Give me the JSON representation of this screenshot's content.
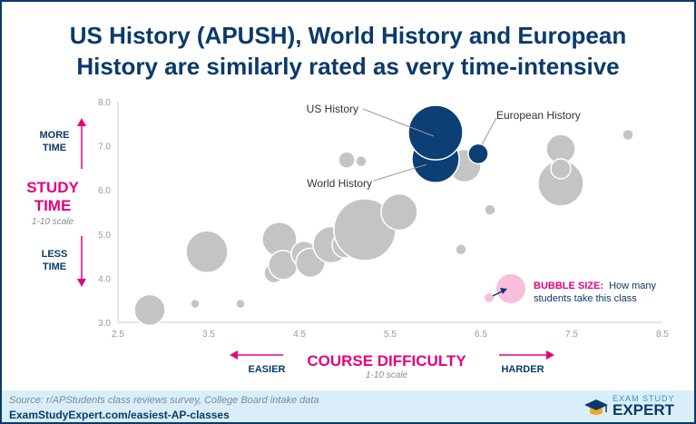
{
  "title_lines": [
    "US History (APUSH), World History and European",
    "History are similarly rated as very time-intensive"
  ],
  "colors": {
    "frame": "#0a3a6b",
    "highlight": "#0b3f75",
    "bubble": "#c4c4c4",
    "accent": "#e6007e",
    "legend_bubble": "#f7bfdc",
    "footer": "#d9eef8"
  },
  "annotations": {
    "more_time": [
      "MORE",
      "TIME"
    ],
    "less_time": [
      "LESS",
      "TIME"
    ],
    "study_time": [
      "STUDY",
      "TIME"
    ],
    "y_scale": "1-10 scale",
    "easier": "EASIER",
    "harder": "HARDER",
    "course_difficulty": "COURSE DIFFICULTY",
    "x_scale": "1-10 scale",
    "bubble_size_label": "BUBBLE SIZE:",
    "bubble_size_text_1": "How many",
    "bubble_size_text_2": "students take this class"
  },
  "footer": {
    "source": "Source: r/APStudents class reviews survey, College Board intake data",
    "url": "ExamStudyExpert.com/easiest-AP-classes"
  },
  "logo": {
    "top": "EXAM STUDY",
    "main": "EXPERT"
  },
  "chart_data": {
    "type": "scatter",
    "xlim": [
      2.5,
      8.5
    ],
    "ylim": [
      3.0,
      8.0
    ],
    "x_ticks": [
      "2.5",
      "3.5",
      "4.5",
      "5.5",
      "6.5",
      "7.5",
      "8.5"
    ],
    "y_ticks": [
      "3.0",
      "4.0",
      "5.0",
      "6.0",
      "7.0",
      "8.0"
    ],
    "grid": false,
    "labels": {
      "us_history": "US History",
      "world_history": "World History",
      "european_history": "European History"
    },
    "points": [
      {
        "x": 2.85,
        "y": 3.28,
        "r": 17,
        "highlight": false
      },
      {
        "x": 3.35,
        "y": 3.42,
        "r": 5,
        "highlight": false
      },
      {
        "x": 3.48,
        "y": 4.6,
        "r": 23,
        "highlight": false
      },
      {
        "x": 3.85,
        "y": 3.42,
        "r": 5,
        "highlight": false
      },
      {
        "x": 4.22,
        "y": 4.12,
        "r": 11,
        "highlight": false
      },
      {
        "x": 4.28,
        "y": 4.88,
        "r": 19,
        "highlight": false
      },
      {
        "x": 4.32,
        "y": 4.3,
        "r": 16,
        "highlight": false
      },
      {
        "x": 4.55,
        "y": 4.55,
        "r": 14,
        "highlight": false
      },
      {
        "x": 4.62,
        "y": 4.35,
        "r": 16,
        "highlight": false
      },
      {
        "x": 4.85,
        "y": 4.76,
        "r": 20,
        "highlight": false
      },
      {
        "x": 5.0,
        "y": 4.75,
        "r": 14,
        "highlight": false
      },
      {
        "x": 5.22,
        "y": 5.1,
        "r": 34,
        "highlight": false
      },
      {
        "x": 5.6,
        "y": 5.5,
        "r": 20,
        "highlight": false
      },
      {
        "x": 5.02,
        "y": 6.68,
        "r": 9,
        "highlight": false
      },
      {
        "x": 5.18,
        "y": 6.65,
        "r": 6,
        "highlight": false
      },
      {
        "x": 6.32,
        "y": 6.55,
        "r": 18,
        "highlight": false
      },
      {
        "x": 6.28,
        "y": 4.65,
        "r": 6,
        "highlight": false
      },
      {
        "x": 6.6,
        "y": 5.55,
        "r": 6,
        "highlight": false
      },
      {
        "x": 7.38,
        "y": 6.93,
        "r": 16,
        "highlight": false
      },
      {
        "x": 7.38,
        "y": 6.15,
        "r": 25,
        "highlight": false
      },
      {
        "x": 7.38,
        "y": 6.48,
        "r": 11,
        "highlight": false
      },
      {
        "x": 8.12,
        "y": 7.25,
        "r": 6,
        "highlight": false
      },
      {
        "x": 6.0,
        "y": 6.7,
        "r": 26,
        "highlight": true
      },
      {
        "x": 6.0,
        "y": 7.3,
        "r": 30,
        "highlight": true
      },
      {
        "x": 6.47,
        "y": 6.82,
        "r": 11,
        "highlight": true
      }
    ]
  }
}
